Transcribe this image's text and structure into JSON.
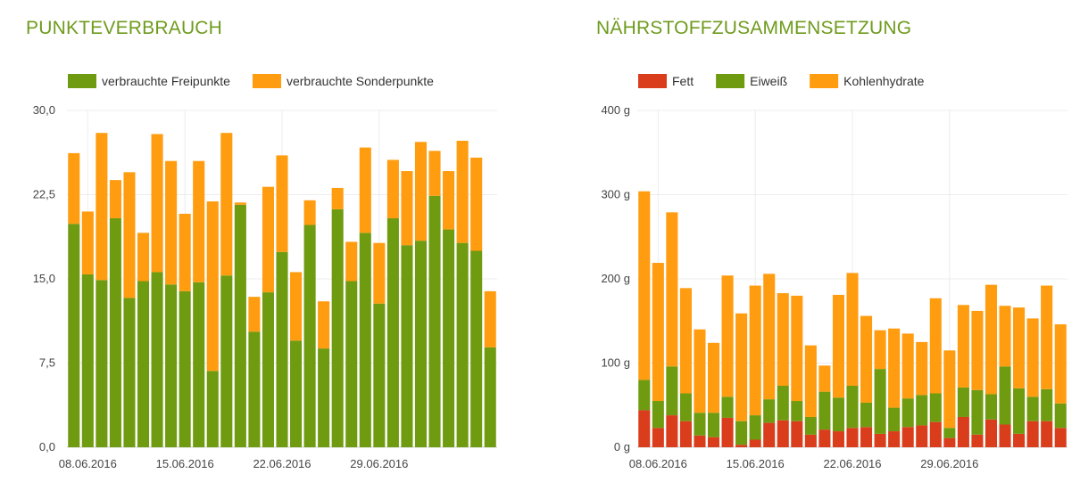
{
  "chart_data": [
    {
      "type": "bar",
      "stacked": true,
      "title": "PUNKTEVERBRAUCH",
      "ylim": [
        0,
        30
      ],
      "yticks": [
        "0,0",
        "7,5",
        "15,0",
        "22,5",
        "30,0"
      ],
      "ytick_values": [
        0,
        7.5,
        15,
        22.5,
        30
      ],
      "xtick_labels": [
        "08.06.2016",
        "15.06.2016",
        "22.06.2016",
        "29.06.2016"
      ],
      "xtick_index": [
        1,
        8,
        15,
        22
      ],
      "grid": true,
      "legend": "top-left",
      "series": [
        {
          "name": "verbrauchte Freipunkte",
          "color": "#6f9b10",
          "values": [
            19.9,
            15.4,
            14.9,
            20.4,
            13.3,
            14.8,
            15.6,
            14.5,
            13.9,
            14.7,
            6.8,
            15.3,
            21.6,
            10.3,
            13.8,
            17.4,
            9.5,
            19.8,
            8.8,
            21.2,
            14.8,
            19.1,
            12.8,
            20.4,
            18.0,
            18.4,
            22.4,
            19.4,
            18.2,
            17.5,
            8.9
          ]
        },
        {
          "name": "verbrauchte Sonderpunkte",
          "color": "#ff9c0f",
          "values": [
            6.3,
            5.6,
            13.1,
            3.4,
            11.2,
            4.3,
            12.3,
            11.0,
            6.9,
            10.8,
            15.1,
            12.7,
            0.2,
            3.1,
            9.4,
            8.6,
            6.1,
            2.2,
            4.2,
            1.9,
            3.5,
            7.6,
            5.4,
            5.2,
            6.6,
            8.8,
            4.0,
            5.2,
            9.1,
            8.3,
            5.0
          ]
        }
      ]
    },
    {
      "type": "bar",
      "stacked": true,
      "title": "NÄHRSTOFFZUSAMMENSETZUNG",
      "ylim": [
        0,
        400
      ],
      "yticks": [
        "0 g",
        "100 g",
        "200 g",
        "300 g",
        "400 g"
      ],
      "ytick_values": [
        0,
        100,
        200,
        300,
        400
      ],
      "xtick_labels": [
        "08.06.2016",
        "15.06.2016",
        "22.06.2016",
        "29.06.2016"
      ],
      "xtick_index": [
        1,
        8,
        15,
        22
      ],
      "grid": true,
      "legend": "top-left",
      "series": [
        {
          "name": "Fett",
          "color": "#d93d1c",
          "values": [
            44,
            23,
            38,
            31,
            14,
            12,
            35,
            3,
            9,
            29,
            32,
            31,
            15,
            21,
            19,
            23,
            24,
            16,
            19,
            24,
            26,
            30,
            11,
            36,
            15,
            33,
            27,
            16,
            31,
            31,
            23
          ]
        },
        {
          "name": "Eiweiß",
          "color": "#6f9b10",
          "values": [
            36,
            32,
            58,
            33,
            27,
            29,
            25,
            28,
            29,
            28,
            41,
            24,
            21,
            45,
            40,
            50,
            29,
            77,
            28,
            34,
            36,
            34,
            12,
            35,
            53,
            30,
            69,
            54,
            29,
            38,
            29
          ]
        },
        {
          "name": "Kohlenhydrate",
          "color": "#ff9c0f",
          "values": [
            224,
            164,
            183,
            125,
            99,
            83,
            144,
            128,
            154,
            149,
            110,
            125,
            85,
            31,
            122,
            134,
            103,
            46,
            94,
            77,
            63,
            113,
            92,
            98,
            94,
            130,
            72,
            96,
            93,
            123,
            94
          ]
        }
      ]
    }
  ]
}
